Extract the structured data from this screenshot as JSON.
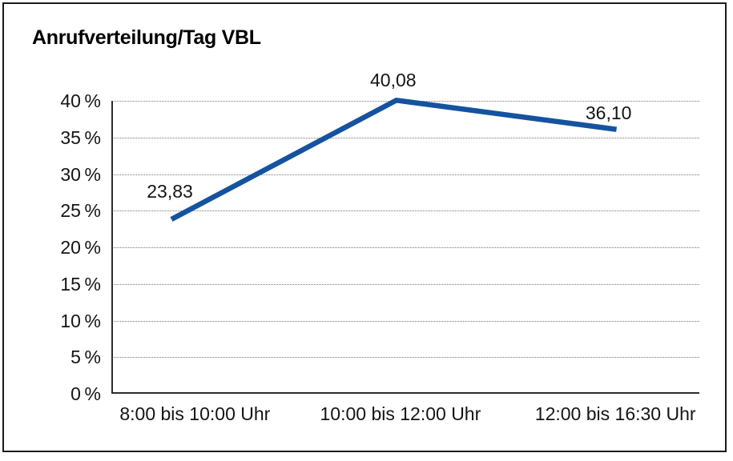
{
  "chart_data": {
    "type": "line",
    "title": "Anrufverteilung/Tag VBL",
    "categories": [
      "8:00 bis 10:00 Uhr",
      "10:00 bis 12:00 Uhr",
      "12:00 bis 16:30 Uhr"
    ],
    "values": [
      23.83,
      40.08,
      36.1
    ],
    "value_labels": [
      "23,83",
      "40,08",
      "36,10"
    ],
    "xlabel": "",
    "ylabel": "",
    "ylim": [
      0,
      40
    ],
    "y_ticks": [
      {
        "value": 0,
        "label": "0 %"
      },
      {
        "value": 5,
        "label": "5 %"
      },
      {
        "value": 10,
        "label": "10 %"
      },
      {
        "value": 15,
        "label": "15 %"
      },
      {
        "value": 20,
        "label": "20 %"
      },
      {
        "value": 25,
        "label": "25 %"
      },
      {
        "value": 30,
        "label": "30 %"
      },
      {
        "value": 35,
        "label": "35 %"
      },
      {
        "value": 40,
        "label": "40 %"
      }
    ],
    "grid": "horizontal-dotted",
    "legend": "none",
    "line_color": "#15539f"
  },
  "colors": {
    "line": "#15539f",
    "grid": "#787878",
    "axis": "#2b2b2b",
    "frame": "#1b1b1b",
    "background": "#ffffff",
    "text": "#141414"
  }
}
